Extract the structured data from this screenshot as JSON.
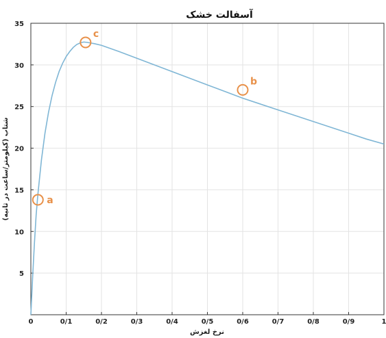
{
  "chart_data": {
    "type": "line",
    "title": "آسفالت خشک",
    "xlabel": "نرخ لغزش",
    "ylabel": "شتاب (کیلومتر/ساعت در ثانیه)",
    "xlim": [
      0,
      1
    ],
    "ylim": [
      0,
      35
    ],
    "grid": true,
    "x_ticks": [
      0,
      0.1,
      0.2,
      0.3,
      0.4,
      0.5,
      0.6,
      0.7,
      0.8,
      0.9,
      1
    ],
    "x_tick_labels": [
      "0",
      "0/1",
      "0/2",
      "0/3",
      "0/4",
      "0/5",
      "0/6",
      "0/7",
      "0/8",
      "0/9",
      "1"
    ],
    "y_ticks": [
      5,
      10,
      15,
      20,
      25,
      30,
      35
    ],
    "y_tick_labels": [
      "5",
      "10",
      "15",
      "20",
      "25",
      "30",
      "35"
    ],
    "series": [
      {
        "color": "#7fb6d5",
        "x": [
          0,
          0.005,
          0.01,
          0.015,
          0.02,
          0.03,
          0.04,
          0.05,
          0.06,
          0.07,
          0.08,
          0.09,
          0.1,
          0.11,
          0.12,
          0.13,
          0.14,
          0.15,
          0.16,
          0.18,
          0.2,
          0.25,
          0.3,
          0.35,
          0.4,
          0.45,
          0.5,
          0.55,
          0.6,
          0.65,
          0.7,
          0.75,
          0.8,
          0.85,
          0.9,
          0.95,
          1.0
        ],
        "y": [
          0,
          4.5,
          8.5,
          12.0,
          14.5,
          18.6,
          21.8,
          24.3,
          26.3,
          27.9,
          29.2,
          30.2,
          31.0,
          31.6,
          32.1,
          32.45,
          32.65,
          32.75,
          32.7,
          32.55,
          32.35,
          31.6,
          30.8,
          30.0,
          29.2,
          28.4,
          27.6,
          26.8,
          26.0,
          25.3,
          24.6,
          23.9,
          23.2,
          22.5,
          21.8,
          21.1,
          20.5
        ]
      }
    ],
    "annotations": [
      {
        "label": "a",
        "x": 0.02,
        "y": 13.8,
        "color": "#e8914a"
      },
      {
        "label": "c",
        "x": 0.155,
        "y": 32.7,
        "color": "#e8914a"
      },
      {
        "label": "b",
        "x": 0.6,
        "y": 27.0,
        "color": "#e8914a"
      }
    ]
  }
}
